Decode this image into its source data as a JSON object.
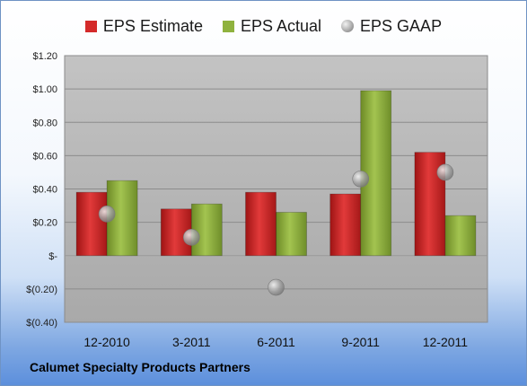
{
  "chart_data": {
    "type": "bar",
    "categories": [
      "12-2010",
      "3-2011",
      "6-2011",
      "9-2011",
      "12-2011"
    ],
    "series": [
      {
        "name": "EPS Estimate",
        "kind": "bar",
        "color": "#d42a2a",
        "values": [
          0.38,
          0.28,
          0.38,
          0.37,
          0.62
        ]
      },
      {
        "name": "EPS Actual",
        "kind": "bar",
        "color": "#8fb23e",
        "values": [
          0.45,
          0.31,
          0.26,
          0.99,
          0.24
        ]
      },
      {
        "name": "EPS GAAP",
        "kind": "marker",
        "color": "#a6a6a6",
        "values": [
          0.25,
          0.11,
          -0.19,
          0.46,
          0.5
        ]
      }
    ],
    "ylim": [
      -0.4,
      1.2
    ],
    "yticks": [
      1.2,
      1.0,
      0.8,
      0.6,
      0.4,
      0.2,
      0,
      -0.2,
      -0.4
    ],
    "ytick_labels": [
      "$1.20",
      "$1.00",
      "$0.80",
      "$0.60",
      "$0.40",
      "$0.20",
      "$-",
      "$(0.20)",
      "$(0.40)"
    ],
    "grid": true,
    "legend_position": "top"
  },
  "company_name": "Calumet Specialty Products Partners"
}
